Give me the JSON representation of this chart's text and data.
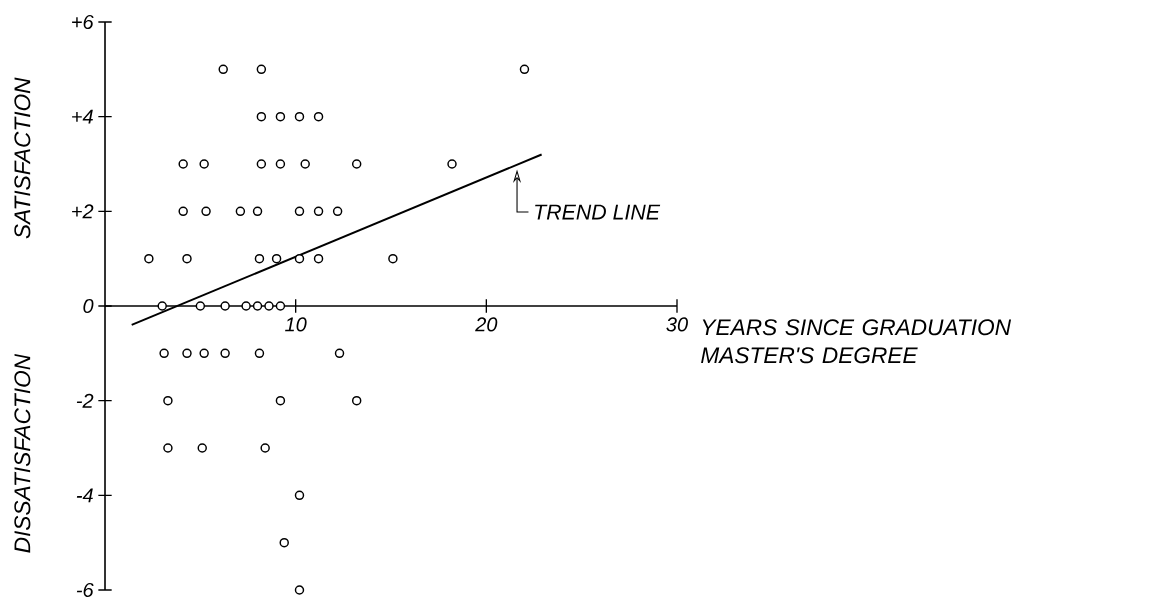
{
  "chart_data": {
    "type": "scatter",
    "xlabel": "YEARS SINCE GRADUATION MASTER'S DEGREE",
    "ylabel": "SATISFACTION",
    "annotations": [
      "DISSATISFACTION"
    ],
    "xlim": [
      0,
      30
    ],
    "ylim": [
      -6,
      6
    ],
    "xticks": [
      10,
      20,
      30
    ],
    "yticks": [
      {
        "value": 6,
        "label": "+6"
      },
      {
        "value": 4,
        "label": "+4"
      },
      {
        "value": 2,
        "label": "+2"
      },
      0,
      -2,
      -4,
      -6
    ],
    "series": [
      {
        "color": "#000000",
        "marker": "circle",
        "x": [
          6.2,
          8.2,
          22.0,
          8.2,
          9.2,
          10.2,
          11.2,
          4.1,
          5.2,
          8.2,
          9.2,
          10.5,
          13.2,
          18.2,
          4.1,
          5.3,
          7.1,
          8.0,
          10.2,
          11.2,
          12.2,
          2.3,
          4.3,
          8.1,
          9.0,
          10.2,
          11.2,
          15.1,
          3.0,
          5.0,
          6.3,
          7.4,
          8.0,
          8.6,
          9.2,
          3.1,
          4.3,
          5.2,
          6.3,
          8.1,
          12.3,
          3.3,
          9.2,
          13.2,
          3.3,
          5.1,
          8.4,
          10.2,
          9.4,
          10.2
        ],
        "values": [
          5,
          5,
          5,
          4,
          4,
          4,
          4,
          3,
          3,
          3,
          3,
          3,
          3,
          3,
          2,
          2,
          2,
          2,
          2,
          2,
          2,
          1,
          1,
          1,
          1,
          1,
          1,
          1,
          0,
          0,
          0,
          0,
          0,
          0,
          0,
          -1,
          -1,
          -1,
          -1,
          -1,
          -1,
          -2,
          -2,
          -2,
          -3,
          -3,
          -3,
          -4,
          -5,
          -6
        ]
      },
      {
        "type": "line",
        "name": "TREND LINE",
        "color": "#000000",
        "marker": "none",
        "x": [
          1.4,
          22.9
        ],
        "values": [
          -0.4,
          3.2
        ]
      }
    ]
  }
}
